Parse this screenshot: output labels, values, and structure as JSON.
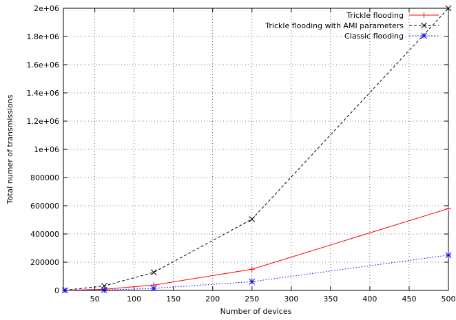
{
  "chart_data": {
    "type": "line",
    "title": "",
    "xlabel": "Number of devices",
    "ylabel": "Total numer of transmissions",
    "xlim": [
      10,
      500
    ],
    "ylim": [
      0,
      2000000
    ],
    "xticks": [
      50,
      100,
      150,
      200,
      250,
      300,
      350,
      400,
      450,
      500
    ],
    "yticks": [
      0,
      200000,
      400000,
      600000,
      800000,
      1000000,
      1200000,
      1400000,
      1600000,
      1800000,
      2000000
    ],
    "ytick_labels": [
      "0",
      "200000",
      "400000",
      "600000",
      "800000",
      "1e+06",
      "1.2e+06",
      "1.4e+06",
      "1.6e+06",
      "1.8e+06",
      "2e+06"
    ],
    "grid": true,
    "legend_position": "top-right",
    "series": [
      {
        "name": "Trickle flooding",
        "color": "#ff0000",
        "line_style": "solid",
        "marker": "plus",
        "x": [
          12,
          62,
          125,
          250,
          500
        ],
        "y": [
          300,
          8000,
          38000,
          150000,
          580000
        ]
      },
      {
        "name": "Trickle flooding with AMI parameters",
        "color": "#000000",
        "line_style": "dashed",
        "marker": "cross",
        "x": [
          12,
          62,
          125,
          250,
          500
        ],
        "y": [
          1000,
          32000,
          128000,
          505000,
          2000000
        ]
      },
      {
        "name": "Classic flooding",
        "color": "#0000ff",
        "line_style": "dotted",
        "marker": "star",
        "x": [
          12,
          62,
          125,
          250,
          500
        ],
        "y": [
          150,
          2500,
          15000,
          62000,
          250000
        ]
      }
    ]
  }
}
